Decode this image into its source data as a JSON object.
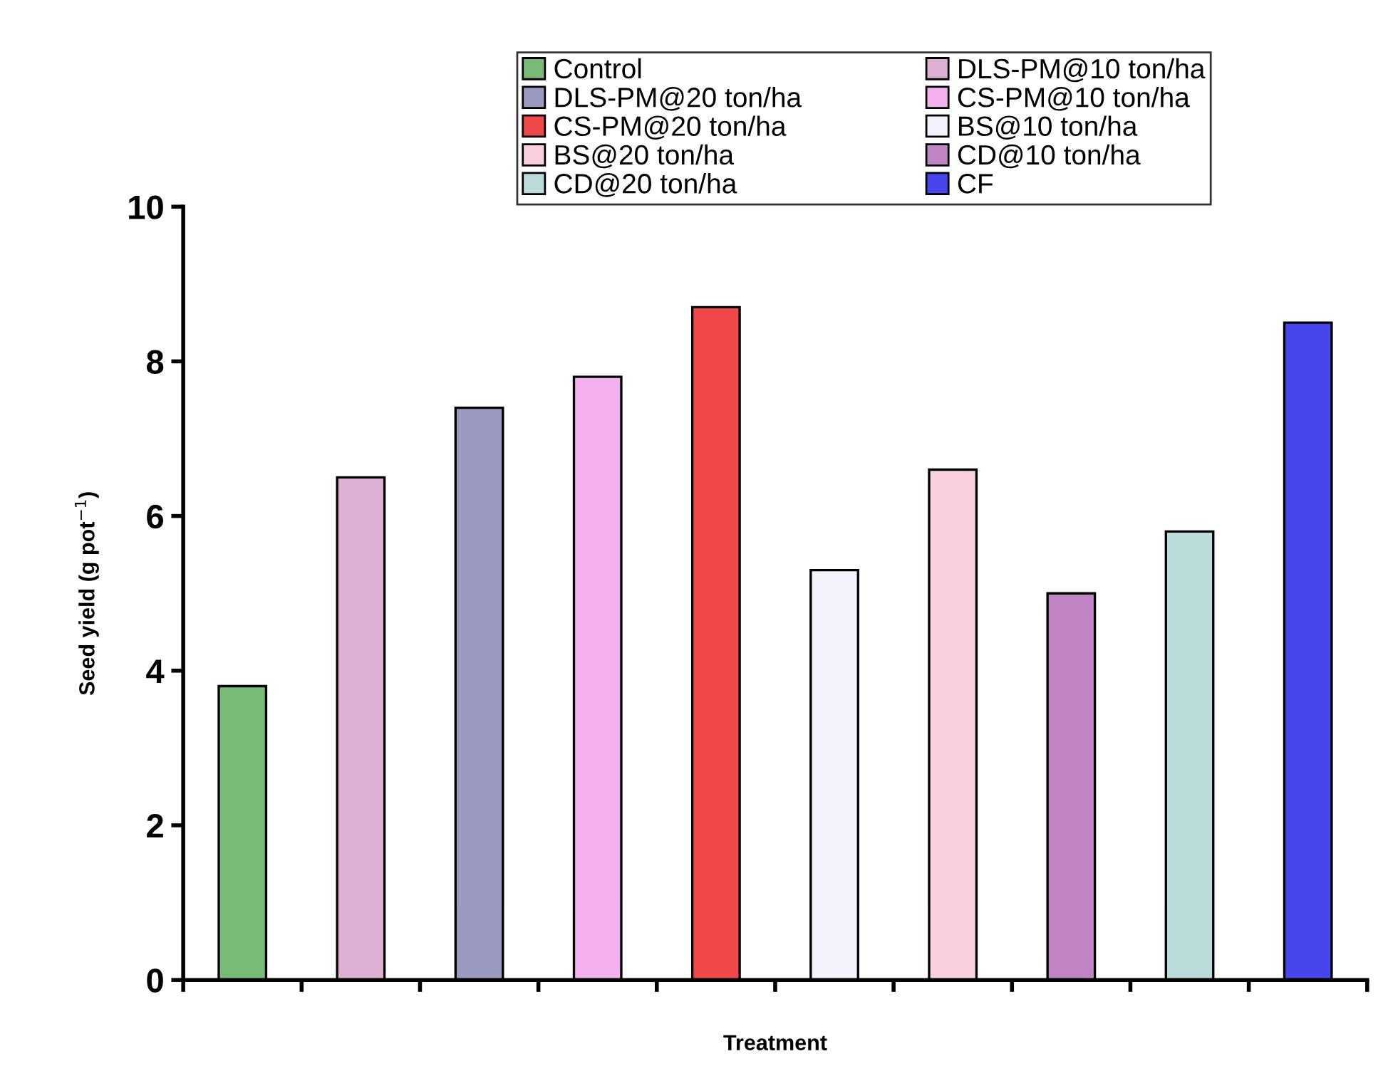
{
  "chart_data": {
    "type": "bar",
    "xlabel": "Treatment",
    "ylabel": "Seed yield (g pot$^{−1}$)",
    "categories": [
      null,
      null,
      null,
      null,
      null,
      null,
      null,
      null,
      null,
      null
    ],
    "series": [
      {
        "name": "Control",
        "color": "#77bb77",
        "values": [
          3.8,
          null,
          null,
          null,
          null,
          null,
          null,
          null,
          null,
          null
        ]
      },
      {
        "name": "DLS-PM@10 ton/ha",
        "color": "#ddb0d4",
        "values": [
          null,
          6.5,
          null,
          null,
          null,
          null,
          null,
          null,
          null,
          null
        ]
      },
      {
        "name": "DLS-PM@20 ton/ha",
        "color": "#9a9ac0",
        "values": [
          null,
          null,
          7.4,
          null,
          null,
          null,
          null,
          null,
          null,
          null
        ]
      },
      {
        "name": "CS-PM@10 ton/ha",
        "color": "#f5b0f0",
        "values": [
          null,
          null,
          null,
          7.8,
          null,
          null,
          null,
          null,
          null,
          null
        ]
      },
      {
        "name": "CS-PM@20 ton/ha",
        "color": "#f04848",
        "values": [
          null,
          null,
          null,
          null,
          8.7,
          null,
          null,
          null,
          null,
          null
        ]
      },
      {
        "name": "BS@10 ton/ha",
        "color": "#f4f0fc",
        "values": [
          null,
          null,
          null,
          null,
          null,
          5.3,
          null,
          null,
          null,
          null
        ]
      },
      {
        "name": "BS@20 ton/ha",
        "color": "#fad0dc",
        "values": [
          null,
          null,
          null,
          null,
          null,
          null,
          6.6,
          null,
          null,
          null
        ]
      },
      {
        "name": "CD@10 ton/ha",
        "color": "#c084c4",
        "values": [
          null,
          null,
          null,
          null,
          null,
          null,
          null,
          5.0,
          null,
          null
        ]
      },
      {
        "name": "CD@20 ton/ha",
        "color": "#bcdcdc",
        "values": [
          null,
          null,
          null,
          null,
          null,
          null,
          null,
          null,
          5.8,
          null
        ]
      },
      {
        "name": "CF",
        "color": "#4646ec",
        "values": [
          null,
          null,
          null,
          null,
          null,
          null,
          null,
          null,
          null,
          8.5
        ]
      }
    ],
    "ylim": [
      0,
      10
    ],
    "yticks": [
      0,
      2,
      4,
      6,
      8,
      10
    ],
    "grid": false,
    "legend": "top"
  }
}
